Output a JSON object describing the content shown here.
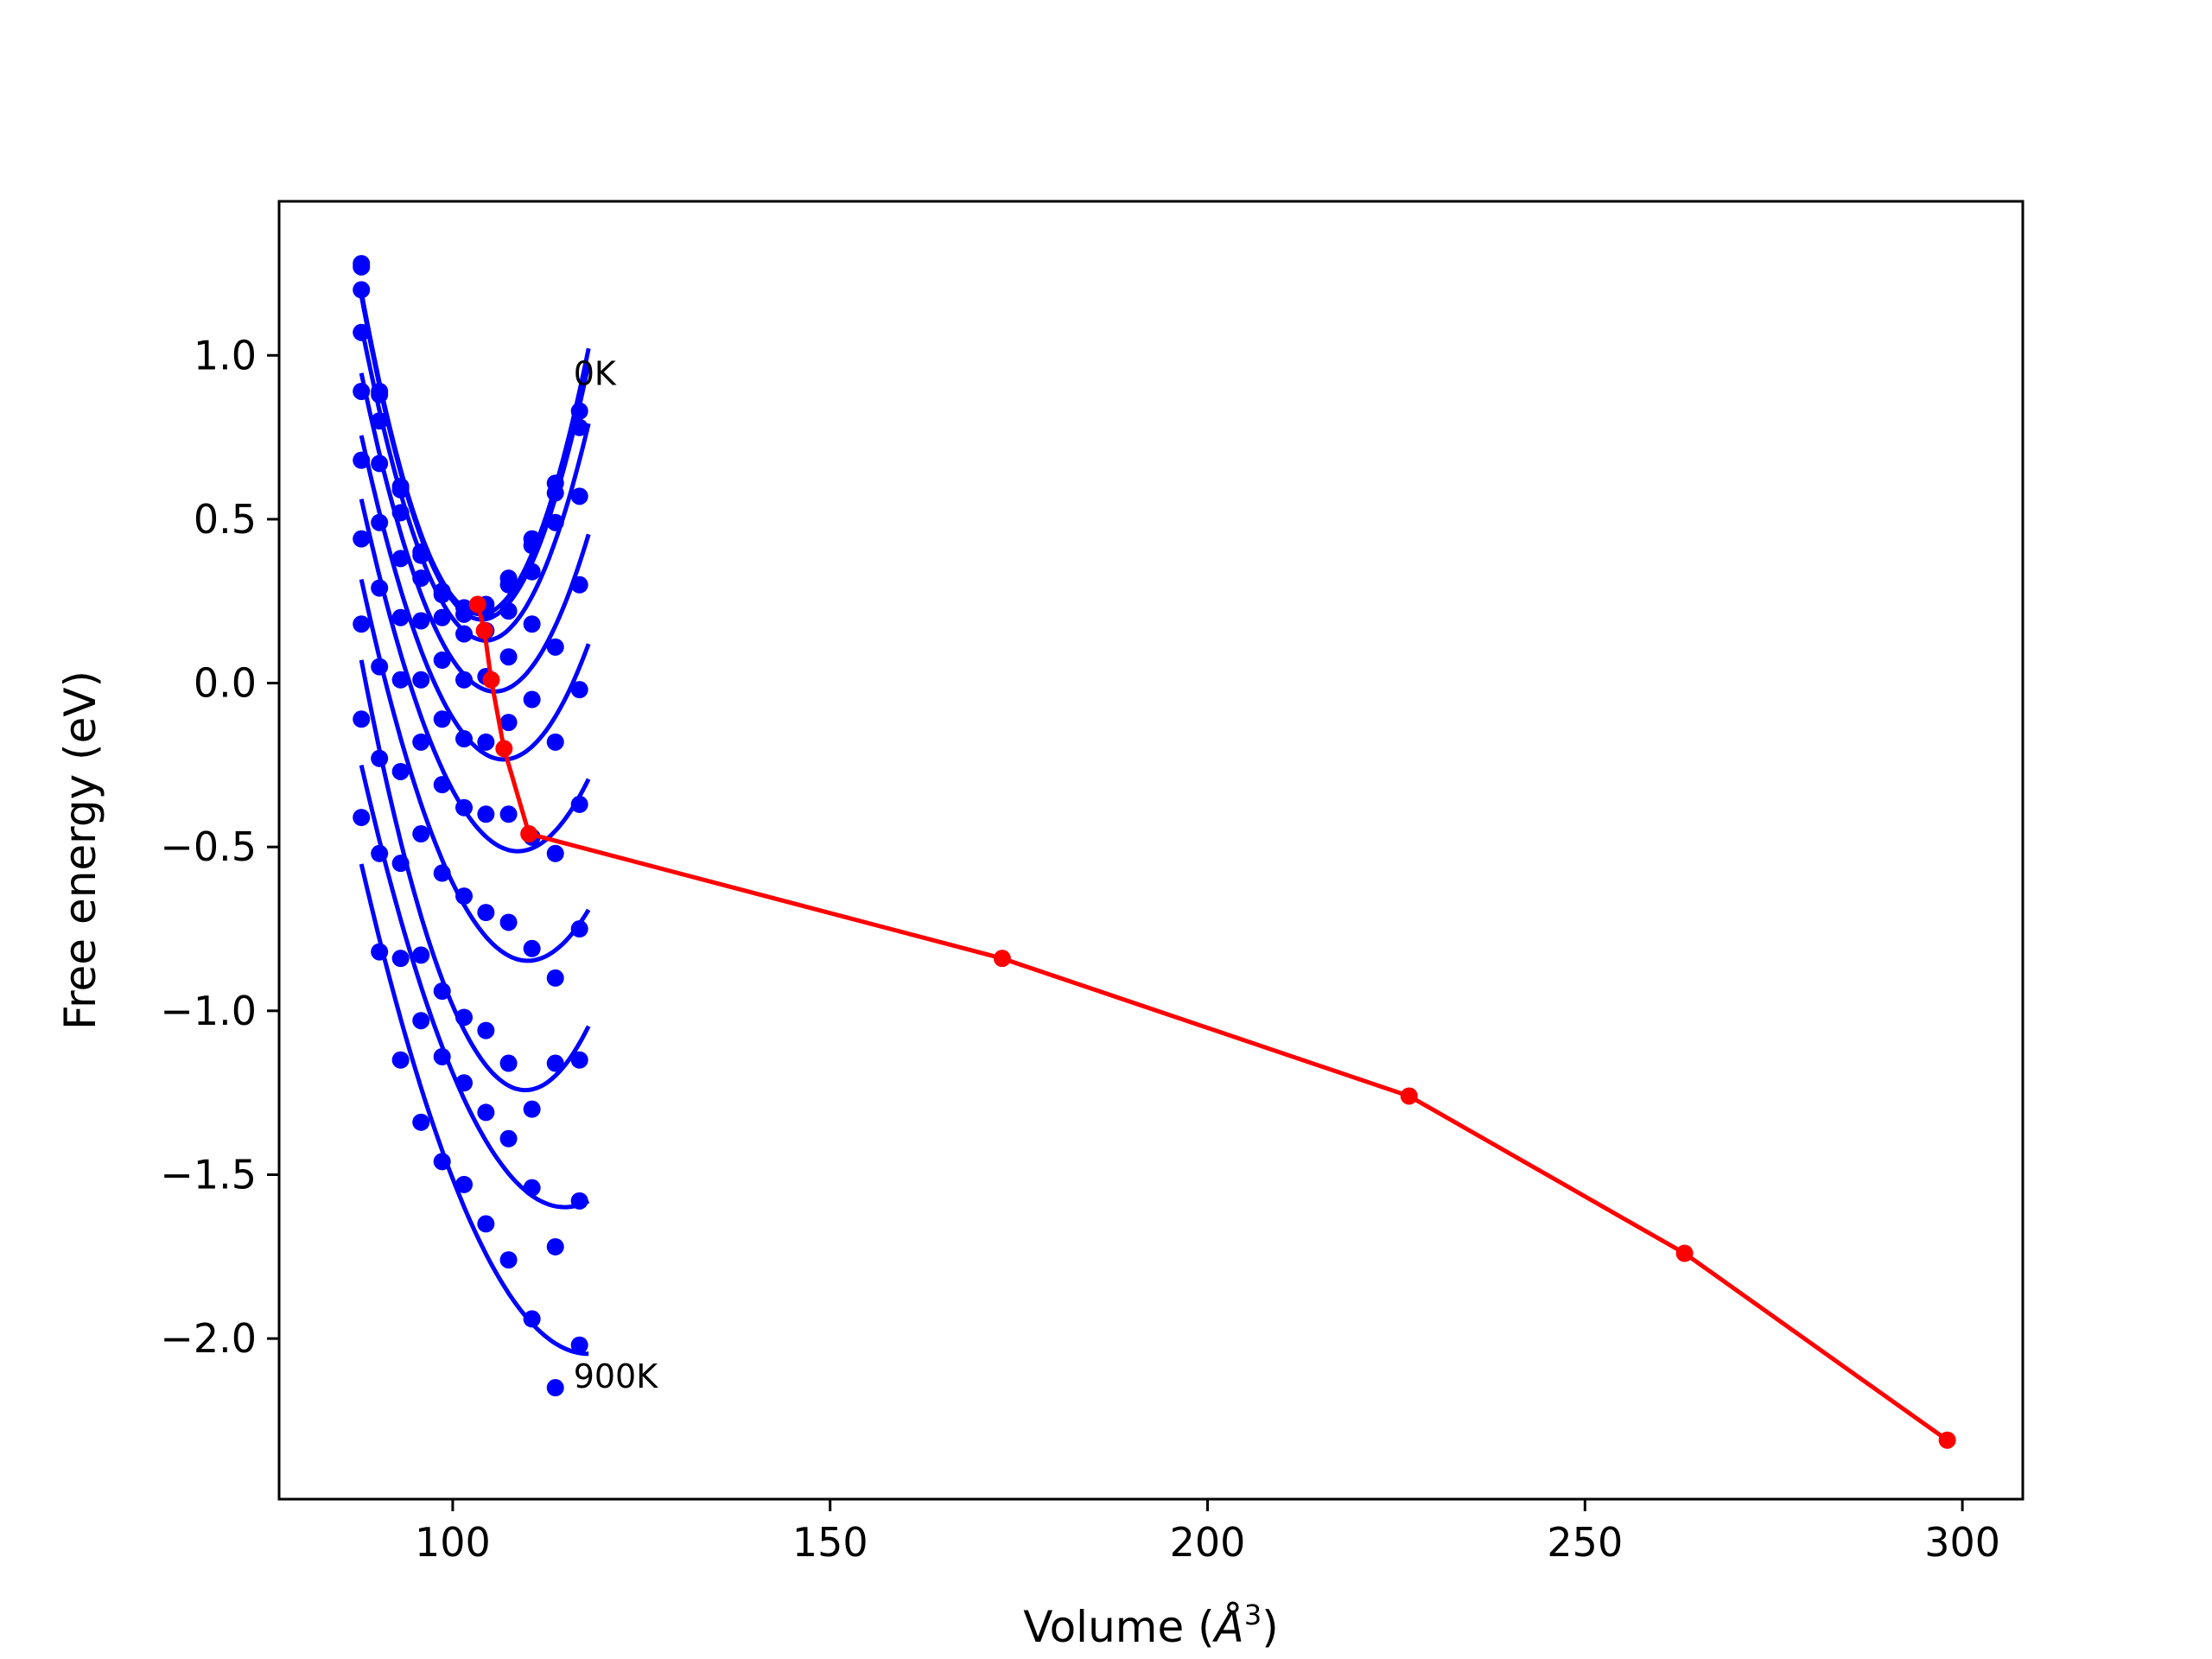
{
  "chart_data": {
    "type": "scatter",
    "xlabel_prefix": "Volume (",
    "xlabel_unit": "Å",
    "xlabel_sup": "3",
    "xlabel_suffix": ")",
    "ylabel": "Free energy (eV)",
    "xlim": [
      77,
      308
    ],
    "ylim": [
      -2.49,
      1.47
    ],
    "xticks": [
      100,
      150,
      200,
      250,
      300
    ],
    "xtick_labels": [
      "100",
      "150",
      "200",
      "250",
      "300"
    ],
    "yticks": [
      -2.0,
      -1.5,
      -1.0,
      -0.5,
      0.0,
      0.5,
      1.0
    ],
    "ytick_labels": [
      "−2.0",
      "−1.5",
      "−1.0",
      "−0.5",
      "0.0",
      "0.5",
      "1.0"
    ],
    "grid": false,
    "legend": "none",
    "annotations": [
      {
        "text": "0K",
        "x": 116,
        "y": 0.91
      },
      {
        "text": "900K",
        "x": 116,
        "y": -2.15
      }
    ],
    "volumes": [
      87.9,
      90.3,
      93.1,
      95.8,
      98.6,
      101.5,
      104.4,
      107.4,
      110.5,
      113.6,
      116.8
    ],
    "series": [
      {
        "y": [
          1.28,
          0.89,
          0.6,
          0.4,
          0.28,
          0.23,
          0.24,
          0.32,
          0.44,
          0.61,
          0.83
        ]
      },
      {
        "y": [
          1.27,
          0.88,
          0.59,
          0.39,
          0.27,
          0.21,
          0.22,
          0.3,
          0.42,
          0.58,
          0.78
        ]
      },
      {
        "y": [
          1.2,
          0.8,
          0.52,
          0.32,
          0.2,
          0.15,
          0.16,
          0.22,
          0.34,
          0.49,
          0.57
        ]
      },
      {
        "y": [
          1.07,
          0.67,
          0.38,
          0.19,
          0.07,
          0.01,
          0.02,
          0.08,
          0.18,
          0.11,
          0.3
        ]
      },
      {
        "y": [
          0.89,
          0.49,
          0.2,
          0.01,
          -0.11,
          -0.17,
          -0.18,
          -0.12,
          -0.05,
          -0.18,
          -0.02
        ]
      },
      {
        "y": [
          0.68,
          0.29,
          0.01,
          -0.18,
          -0.31,
          -0.38,
          -0.4,
          -0.4,
          -0.47,
          -0.52,
          -0.37
        ]
      },
      {
        "y": [
          0.44,
          0.05,
          -0.27,
          -0.46,
          -0.58,
          -0.65,
          -0.7,
          -0.73,
          -0.81,
          -0.9,
          -0.75
        ]
      },
      {
        "y": [
          0.18,
          -0.23,
          -0.55,
          -0.83,
          -0.94,
          -1.02,
          -1.06,
          -1.16,
          -1.3,
          -1.16,
          -1.15
        ]
      },
      {
        "y": [
          -0.11,
          -0.52,
          -0.84,
          -1.03,
          -1.14,
          -1.22,
          -1.31,
          -1.39,
          -1.54,
          -1.72,
          -1.58
        ]
      },
      {
        "y": [
          -0.41,
          -0.82,
          -1.15,
          -1.34,
          -1.46,
          -1.53,
          -1.65,
          -1.76,
          -1.94,
          -2.15,
          -2.02
        ]
      }
    ],
    "min_path": {
      "x": [
        103.3,
        104.2,
        105.1,
        106.8,
        110.1,
        172.8,
        226.7,
        263.2,
        298.0
      ],
      "y": [
        0.24,
        0.16,
        0.01,
        -0.2,
        -0.46,
        -0.84,
        -1.26,
        -1.74,
        -2.31
      ]
    },
    "colors": {
      "fits": "#0000ff",
      "min_path": "#ff0000",
      "axes": "#000000"
    }
  }
}
